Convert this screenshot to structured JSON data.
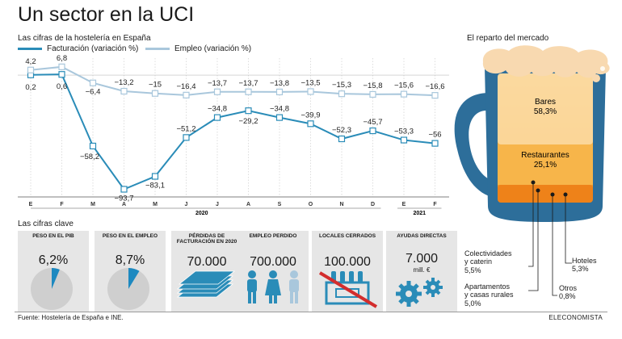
{
  "header": {
    "title": "Un sector en la UCI",
    "subtitle": "Las cifras de la hostelería en España"
  },
  "legend": {
    "facturacion": "Facturación (variación %)",
    "empleo": "Empleo (variación %)"
  },
  "colors": {
    "facturacion": "#2a8cb8",
    "empleo": "#a9c7dc",
    "panel": "#e6e6e6",
    "accent": "#1d89c0",
    "beer": "#f6b93c",
    "foam": "#f8d9b0"
  },
  "chart_data": [
    {
      "type": "line",
      "title": "Las cifras de la hostelería en España",
      "categories": [
        "E",
        "F",
        "M",
        "A",
        "M",
        "J",
        "J",
        "A",
        "S",
        "O",
        "N",
        "D",
        "E",
        "F"
      ],
      "year_labels": [
        "2020",
        "2021"
      ],
      "series": [
        {
          "name": "Facturación (variación %)",
          "values": [
            0.2,
            0.6,
            -58.2,
            -93.7,
            -83.1,
            -51.2,
            -34.8,
            -29.2,
            -34.8,
            -39.9,
            -52.3,
            -45.7,
            -53.3,
            -56
          ],
          "labels": [
            "0,2",
            "0,6",
            "−58,2",
            "−93,7",
            "−83,1",
            "−51,2",
            "−34,8",
            "−29,2",
            "−34,8",
            "−39,9",
            "−52,3",
            "−45,7",
            "−53,3",
            "−56"
          ]
        },
        {
          "name": "Empleo (variación %)",
          "values": [
            4.2,
            6.8,
            -6.4,
            -13.2,
            -15,
            -16.4,
            -13.7,
            -13.7,
            -13.8,
            -13.5,
            -15.3,
            -15.8,
            -15.6,
            -16.6
          ],
          "labels": [
            "4,2",
            "6,8",
            "−6,4",
            "−13,2",
            "−15",
            "−16,4",
            "−13,7",
            "−13,7",
            "−13,8",
            "−13,5",
            "−15,3",
            "−15,8",
            "−15,6",
            "−16,6"
          ]
        }
      ],
      "ylim": [
        -100,
        10
      ],
      "grid": true
    },
    {
      "type": "pie",
      "title": "El reparto del mercado",
      "categories": [
        "Bares",
        "Restaurantes",
        "Colectividades y caterin",
        "Apartamentos y casas rurales",
        "Otros",
        "Hoteles"
      ],
      "values": [
        58.3,
        25.1,
        5.5,
        5.0,
        0.8,
        5.3
      ],
      "labels": [
        "58,3%",
        "25,1%",
        "5,5%",
        "5,0%",
        "0,8%",
        "5,3%"
      ]
    }
  ],
  "market": {
    "title": "El reparto del mercado",
    "bares": {
      "name": "Bares",
      "value": "58,3%"
    },
    "restaurantes": {
      "name": "Restaurantes",
      "value": "25,1%"
    },
    "colectividades": {
      "line1": "Colectividades",
      "line2": "y caterin",
      "value": "5,5%"
    },
    "apartamentos": {
      "line1": "Apartamentos",
      "line2": "y casas rurales",
      "value": "5,0%"
    },
    "otros": {
      "name": "Otros",
      "value": "0,8%"
    },
    "hoteles": {
      "name": "Hoteles",
      "value": "5,3%"
    }
  },
  "key_figures": {
    "title": "Las cifras clave",
    "items": [
      {
        "label": "Peso en el PIB",
        "value": "6,2%",
        "fraction": 0.062,
        "icon": "pie-icon"
      },
      {
        "label": "Peso en el empleo",
        "value": "8,7%",
        "fraction": 0.087,
        "icon": "pie-icon"
      },
      {
        "label": "Pérdidas de facturación en 2020",
        "value": "70.000",
        "icon": "banknotes-icon"
      },
      {
        "label": "Empleo perdido",
        "value": "700.000",
        "icon": "people-icon"
      },
      {
        "label": "Locales cerrados",
        "value": "100.000",
        "icon": "bottle-crate-icon"
      },
      {
        "label": "Ayudas directas",
        "value": "7.000",
        "unit": "mill. €",
        "icon": "gears-icon"
      }
    ]
  },
  "footer": {
    "source": "Fuente: Hostelería de España e INE.",
    "publisher": "ELECONOMISTA"
  }
}
